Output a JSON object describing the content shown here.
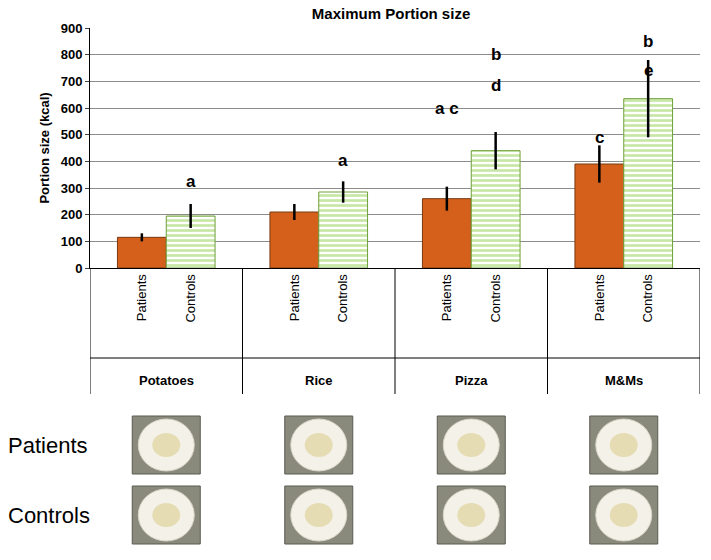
{
  "chart_data": {
    "type": "bar",
    "title": "Maximum Portion size",
    "y_label": "Portion size (kcal)",
    "categories": [
      "Potatoes",
      "Rice",
      "Pizza",
      "M&Ms"
    ],
    "series": [
      {
        "name": "Patients",
        "color": "#d4601c",
        "marker": "solid",
        "values": [
          115,
          210,
          260,
          390
        ],
        "errors": [
          15,
          30,
          45,
          70
        ]
      },
      {
        "name": "Controls",
        "color": "#92d050",
        "marker": "striped",
        "values": [
          195,
          285,
          440,
          635
        ],
        "errors": [
          45,
          40,
          70,
          145
        ]
      }
    ],
    "ylim": [
      0,
      900
    ],
    "yticks": [
      0,
      100,
      200,
      300,
      400,
      500,
      600,
      700,
      800,
      900
    ],
    "grid": true,
    "annotations": [
      {
        "text": "a",
        "category": "Potatoes",
        "series": "Controls",
        "y": 326
      },
      {
        "text": "a",
        "category": "Rice",
        "series": "Controls",
        "y": 405
      },
      {
        "text": "a c",
        "category": "Pizza",
        "series": "Patients",
        "y": 600
      },
      {
        "text": "b",
        "category": "Pizza",
        "series": "Controls",
        "y": 800
      },
      {
        "text": "d",
        "category": "Pizza",
        "series": "Controls",
        "y": 686
      },
      {
        "text": "c",
        "category": "M&Ms",
        "series": "Patients",
        "y": 490
      },
      {
        "text": "b",
        "category": "M&Ms",
        "series": "Controls",
        "y": 850
      },
      {
        "text": "e",
        "category": "M&Ms",
        "series": "Controls",
        "y": 740
      }
    ],
    "photo_rows": [
      "Patients",
      "Controls"
    ]
  }
}
